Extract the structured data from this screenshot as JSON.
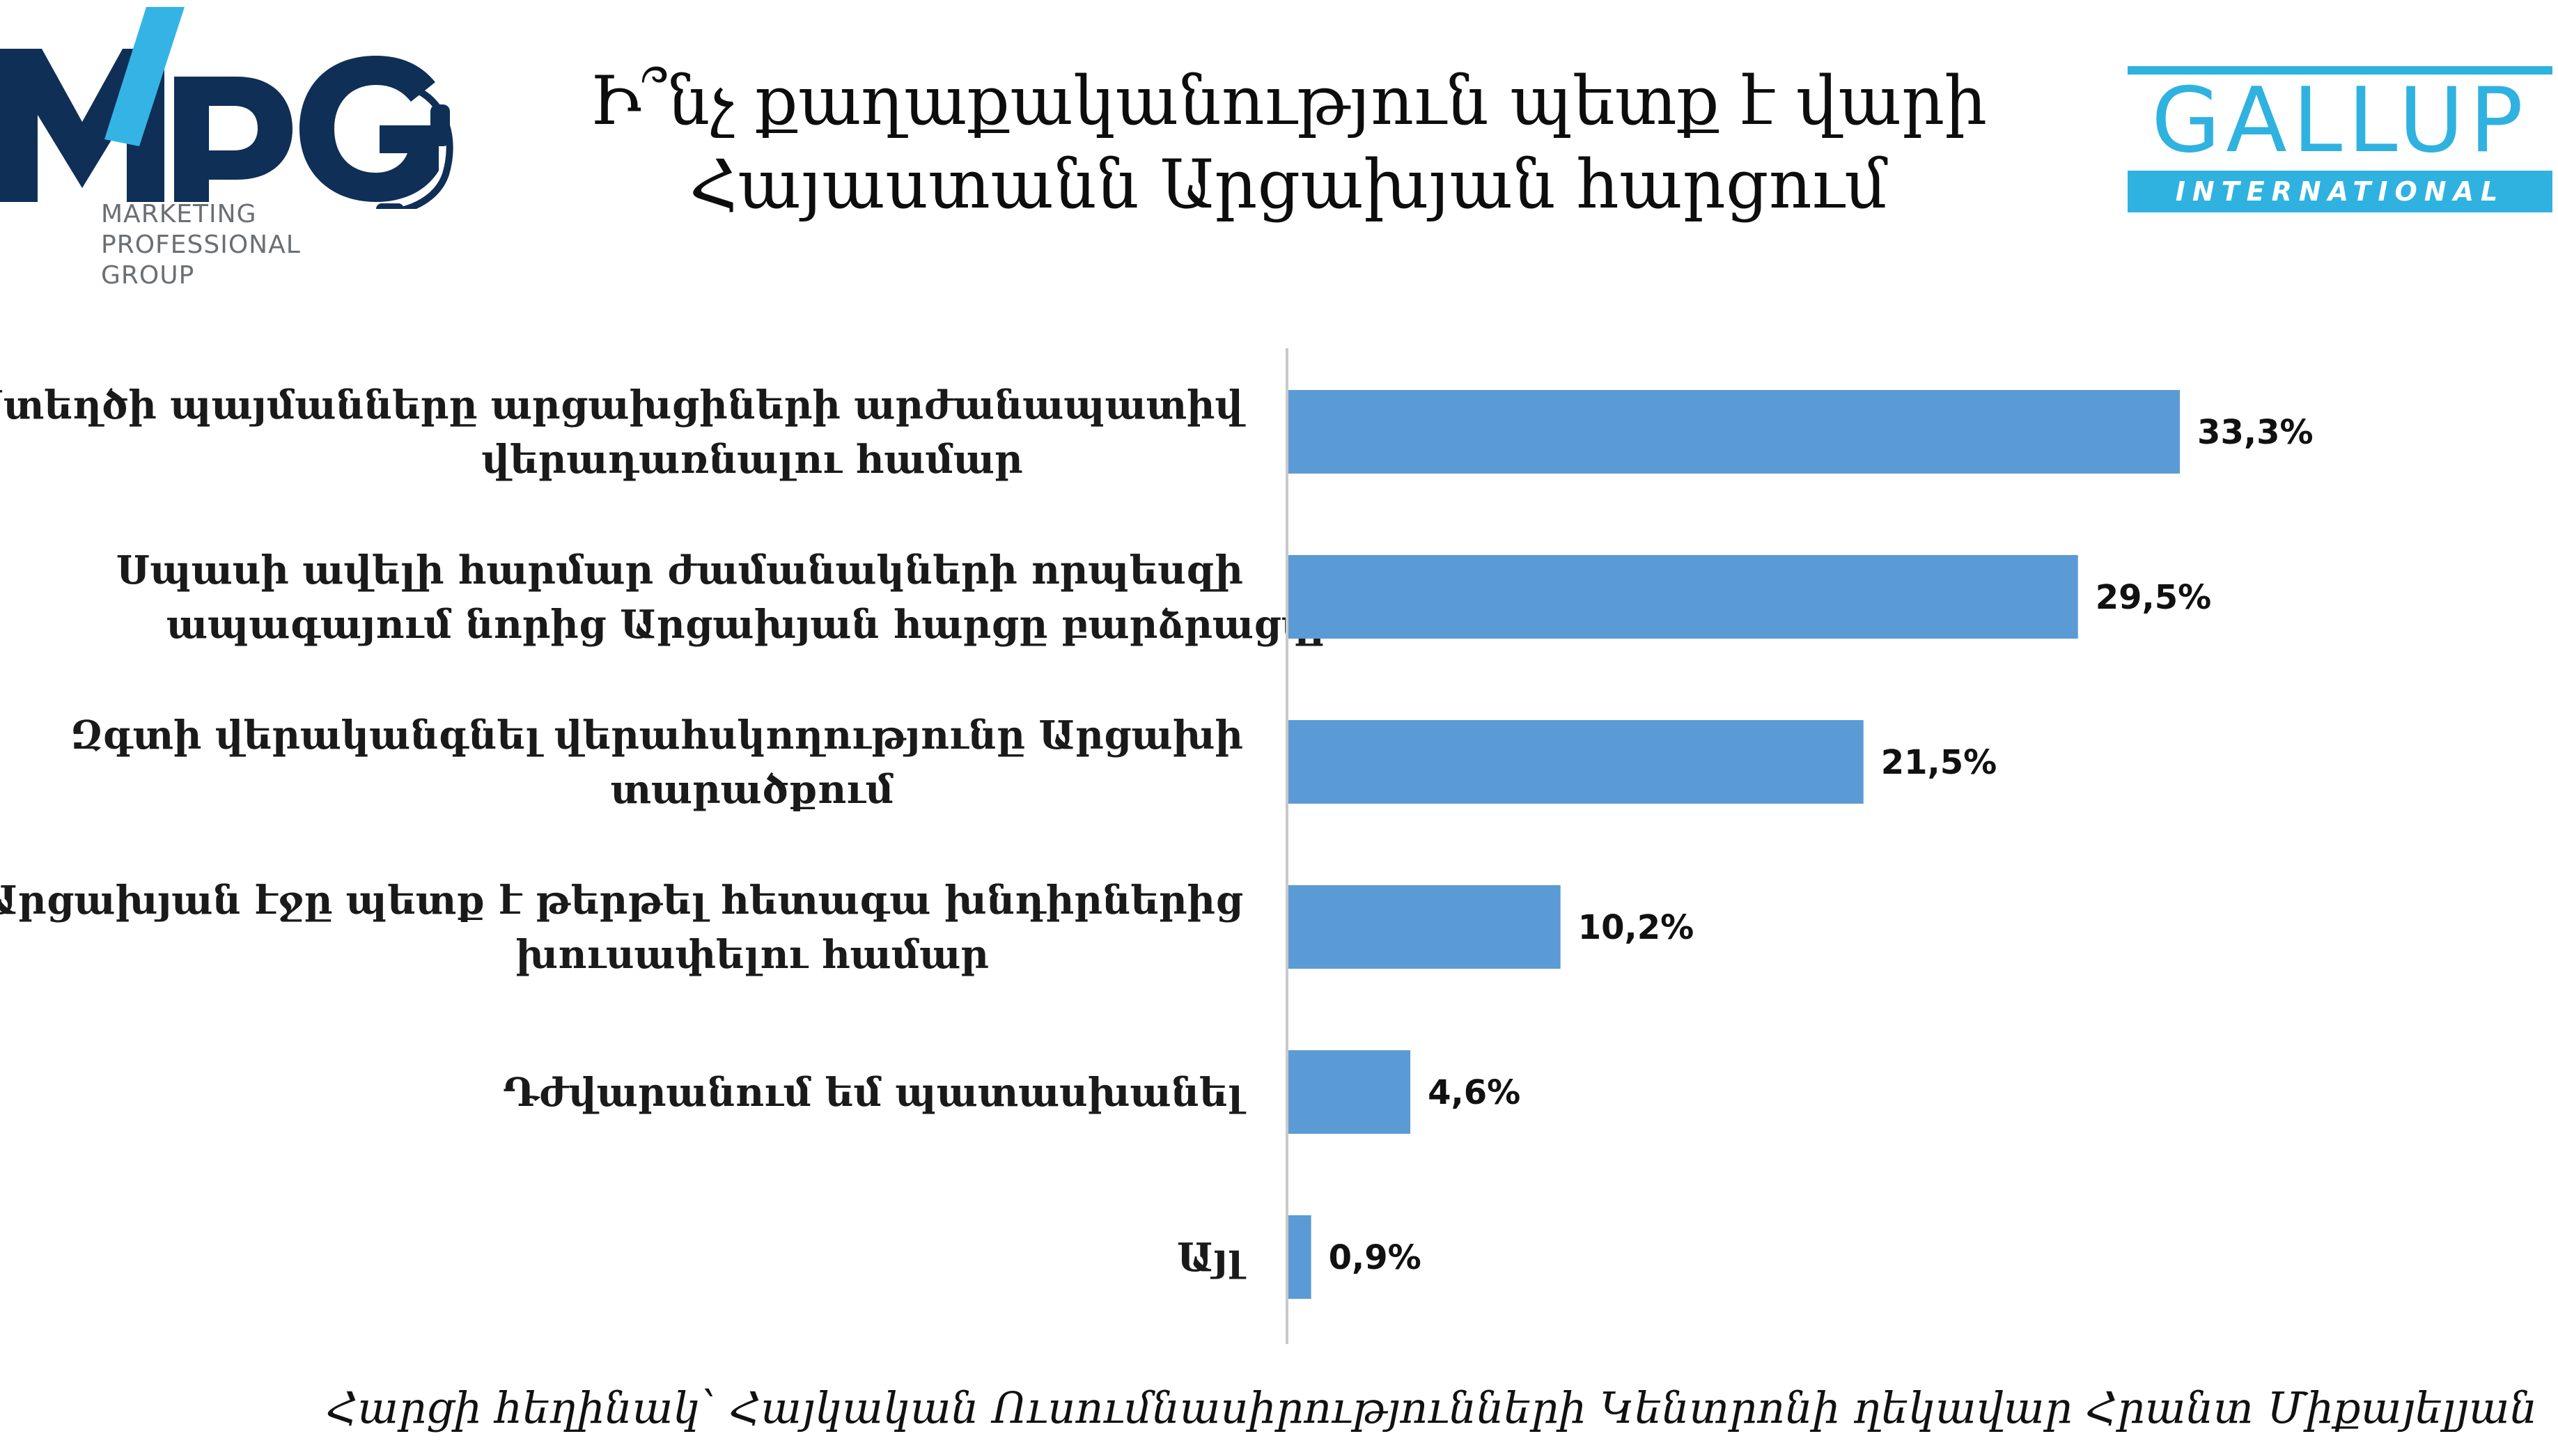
{
  "logos": {
    "mpg": {
      "letters": "MPG",
      "tagline": [
        "MARKETING",
        "PROFESSIONAL",
        "GROUP"
      ],
      "colors": {
        "dark": "#0f2f57",
        "light": "#34b4e5",
        "gray": "#6b6f73"
      }
    },
    "gallup": {
      "word": "GALLUP",
      "band": "INTERNATIONAL",
      "color": "#2fb2e0"
    }
  },
  "chart_data": {
    "type": "bar",
    "orientation": "horizontal",
    "title": "Ի՞նչ քաղաքականություն պետք է վարի\nՀայաստանն Արցախյան հարցում",
    "categories": [
      [
        "Ստեղծի պայմանները արցախցիների արժանապատիվ",
        "վերադառնալու համար"
      ],
      [
        "Սպասի ավելի հարմար ժամանակների որպեսզի",
        "ապագայում նորից Արցախյան հարցը բարձրացվի"
      ],
      [
        "Զգտի վերականգնել վերահսկողությունը Արցախի",
        "տարածքում"
      ],
      [
        "Արցախյան էջը պետք է թերթել հետագա խնդիրներից",
        "խուսափելու համար"
      ],
      [
        "Դժվարանում եմ պատասխանել"
      ],
      [
        "Այլ"
      ]
    ],
    "values": [
      33.3,
      29.5,
      21.5,
      10.2,
      4.6,
      0.9
    ],
    "value_labels": [
      "33,3%",
      "29,5%",
      "21,5%",
      "10,2%",
      "4,6%",
      "0,9%"
    ],
    "xlim": [
      0,
      40
    ],
    "bar_color": "#5b9bd5",
    "grid": false,
    "legend": "none"
  },
  "footer": {
    "note": "Հարցի հեղինակ՝ Հայկական Ուսումնասիրությունների Կենտրոնի ղեկավար Հրանտ Միքայելյան"
  }
}
